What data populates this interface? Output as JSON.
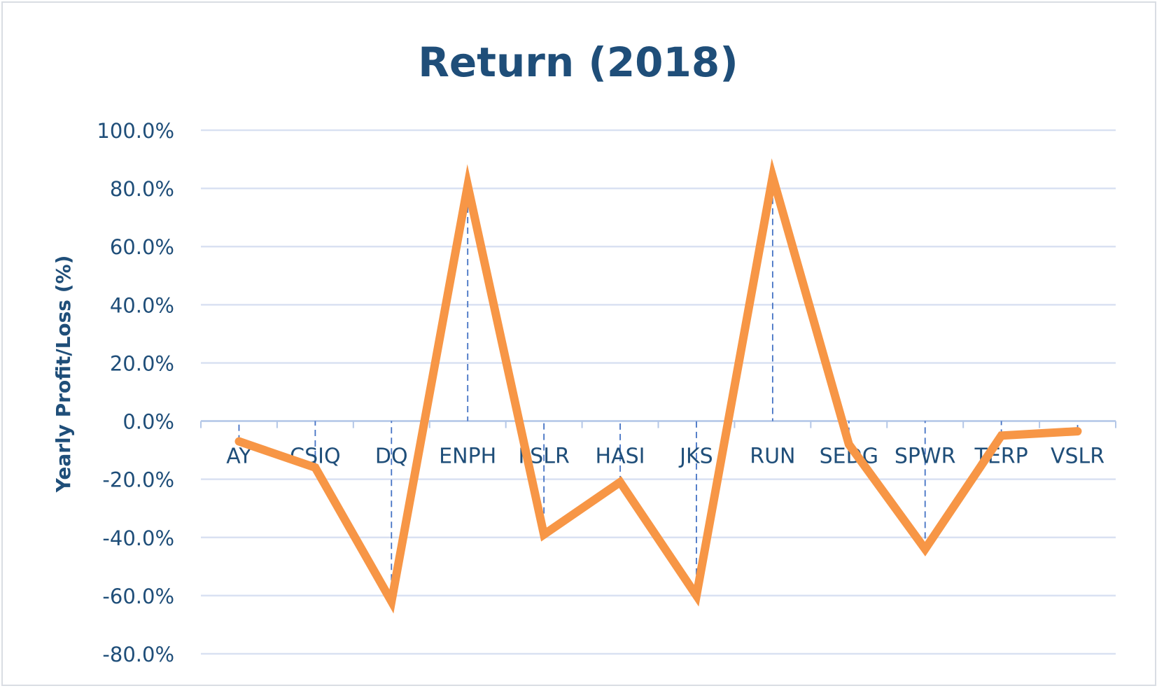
{
  "chart_data": {
    "type": "line",
    "title": "Return (2018)",
    "xlabel": "",
    "ylabel": "Yearly Profit/Loss (%)",
    "categories": [
      "AY",
      "CSIQ",
      "DQ",
      "ENPH",
      "FSLR",
      "HASI",
      "JKS",
      "RUN",
      "SEDG",
      "SPWR",
      "TERP",
      "VSLR"
    ],
    "series": [
      {
        "values": [
          -7.0,
          -16.0,
          -62.0,
          81.0,
          -39.0,
          -21.0,
          -60.0,
          84.0,
          -8.0,
          -44.0,
          -5.0,
          -3.5
        ]
      }
    ],
    "ylim": [
      -80,
      100
    ],
    "yticks": [
      100,
      80,
      60,
      40,
      20,
      0,
      -20,
      -40,
      -60,
      -80
    ],
    "ytick_labels": [
      "100.0%",
      "80.0%",
      "60.0%",
      "40.0%",
      "20.0%",
      "0.0%",
      "-20.0%",
      "-40.0%",
      "-60.0%",
      "-80.0%"
    ],
    "grid": true,
    "drop_lines": true,
    "legend": "none"
  },
  "colors": {
    "line": "#f79646",
    "text": "#1f4e79",
    "grid": "#d9e1f2",
    "axis": "#b4c7e7",
    "drop_line": "#4472c4"
  }
}
